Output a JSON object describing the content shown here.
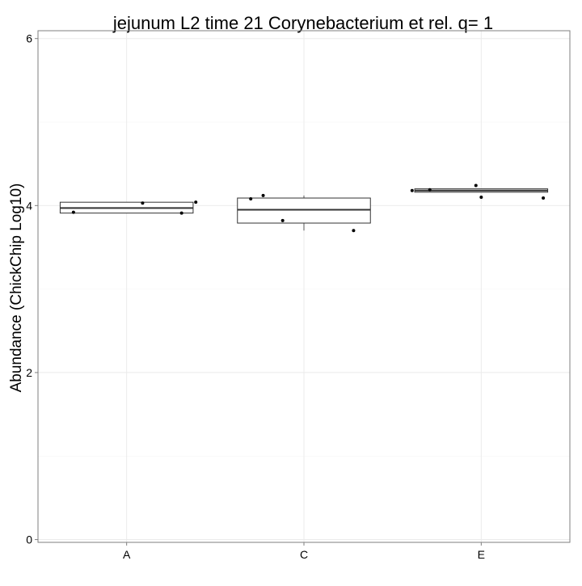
{
  "chart_data": {
    "type": "box",
    "title": "jejunum L2 time 21 Corynebacterium et rel. q= 1",
    "xlabel": "",
    "ylabel": "Abundance (ChickChip Log10)",
    "ylim": [
      0,
      6
    ],
    "yticks": [
      0,
      2,
      4,
      6
    ],
    "minor_yticks": [
      1,
      3,
      5
    ],
    "grid": true,
    "categories": [
      "A",
      "C",
      "E"
    ],
    "boxes": [
      {
        "category": "A",
        "q1": 3.91,
        "median": 3.97,
        "q3": 4.04,
        "whisker_low": 3.91,
        "whisker_high": 4.04
      },
      {
        "category": "C",
        "q1": 3.79,
        "median": 3.95,
        "q3": 4.09,
        "whisker_low": 3.7,
        "whisker_high": 4.12
      },
      {
        "category": "E",
        "q1": 4.16,
        "median": 4.18,
        "q3": 4.2,
        "whisker_low": 4.16,
        "whisker_high": 4.2
      }
    ],
    "points": [
      {
        "category": "A",
        "x_offset": -0.3,
        "y": 3.92
      },
      {
        "category": "A",
        "x_offset": 0.09,
        "y": 4.03
      },
      {
        "category": "A",
        "x_offset": 0.31,
        "y": 3.91
      },
      {
        "category": "A",
        "x_offset": 0.39,
        "y": 4.04
      },
      {
        "category": "C",
        "x_offset": -0.3,
        "y": 4.08
      },
      {
        "category": "C",
        "x_offset": -0.23,
        "y": 4.12
      },
      {
        "category": "C",
        "x_offset": -0.12,
        "y": 3.82
      },
      {
        "category": "C",
        "x_offset": 0.28,
        "y": 3.7
      },
      {
        "category": "E",
        "x_offset": -0.39,
        "y": 4.18
      },
      {
        "category": "E",
        "x_offset": -0.29,
        "y": 4.19
      },
      {
        "category": "E",
        "x_offset": -0.03,
        "y": 4.24
      },
      {
        "category": "E",
        "x_offset": 0.0,
        "y": 4.1
      },
      {
        "category": "E",
        "x_offset": 0.35,
        "y": 4.09
      }
    ],
    "colors": {
      "panel_border": "#7f7f7f",
      "grid_major": "#ebebeb",
      "grid_minor": "#f5f5f5",
      "box_line": "#333333",
      "point": "#000000"
    }
  }
}
